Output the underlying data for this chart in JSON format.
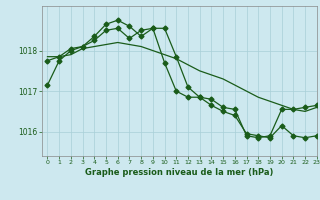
{
  "xlabel": "Graphe pression niveau de la mer (hPa)",
  "background_color": "#cde8ef",
  "grid_color": "#a8cfd8",
  "line_color": "#1a5c1a",
  "xlim": [
    -0.5,
    23
  ],
  "ylim": [
    1015.4,
    1019.1
  ],
  "yticks": [
    1016,
    1017,
    1018
  ],
  "xticks": [
    0,
    1,
    2,
    3,
    4,
    5,
    6,
    7,
    8,
    9,
    10,
    11,
    12,
    13,
    14,
    15,
    16,
    17,
    18,
    19,
    20,
    21,
    22,
    23
  ],
  "series1_x": [
    0,
    1,
    2,
    3,
    4,
    5,
    6,
    7,
    8,
    9,
    10,
    11,
    12,
    13,
    14,
    15,
    16,
    17,
    18,
    19,
    20,
    21,
    22,
    23
  ],
  "series1_y": [
    1017.15,
    1017.75,
    1018.0,
    1018.1,
    1018.35,
    1018.65,
    1018.75,
    1018.6,
    1018.35,
    1018.55,
    1018.55,
    1017.85,
    1017.1,
    1016.85,
    1016.65,
    1016.5,
    1016.4,
    1015.95,
    1015.9,
    1015.85,
    1016.15,
    1015.9,
    1015.85,
    1015.9
  ],
  "series2_x": [
    0,
    1,
    2,
    3,
    4,
    5,
    6,
    7,
    8,
    9,
    10,
    11,
    12,
    13,
    14,
    15,
    16,
    17,
    18,
    19,
    20,
    21,
    22,
    23
  ],
  "series2_y": [
    1017.85,
    1017.85,
    1017.9,
    1018.05,
    1018.1,
    1018.15,
    1018.2,
    1018.15,
    1018.1,
    1018.0,
    1017.9,
    1017.8,
    1017.65,
    1017.5,
    1017.4,
    1017.3,
    1017.15,
    1017.0,
    1016.85,
    1016.75,
    1016.65,
    1016.55,
    1016.5,
    1016.6
  ],
  "series3_x": [
    0,
    1,
    2,
    3,
    4,
    5,
    6,
    7,
    8,
    9,
    10,
    11,
    12,
    13,
    14,
    15,
    16,
    17,
    18,
    19,
    20,
    21,
    22,
    23
  ],
  "series3_y": [
    1017.75,
    1017.85,
    1018.05,
    1018.1,
    1018.25,
    1018.5,
    1018.55,
    1018.3,
    1018.5,
    1018.55,
    1017.7,
    1017.0,
    1016.85,
    1016.85,
    1016.8,
    1016.6,
    1016.55,
    1015.9,
    1015.85,
    1015.9,
    1016.55,
    1016.55,
    1016.6,
    1016.65
  ],
  "marker_size": 2.5,
  "linewidth": 0.9
}
